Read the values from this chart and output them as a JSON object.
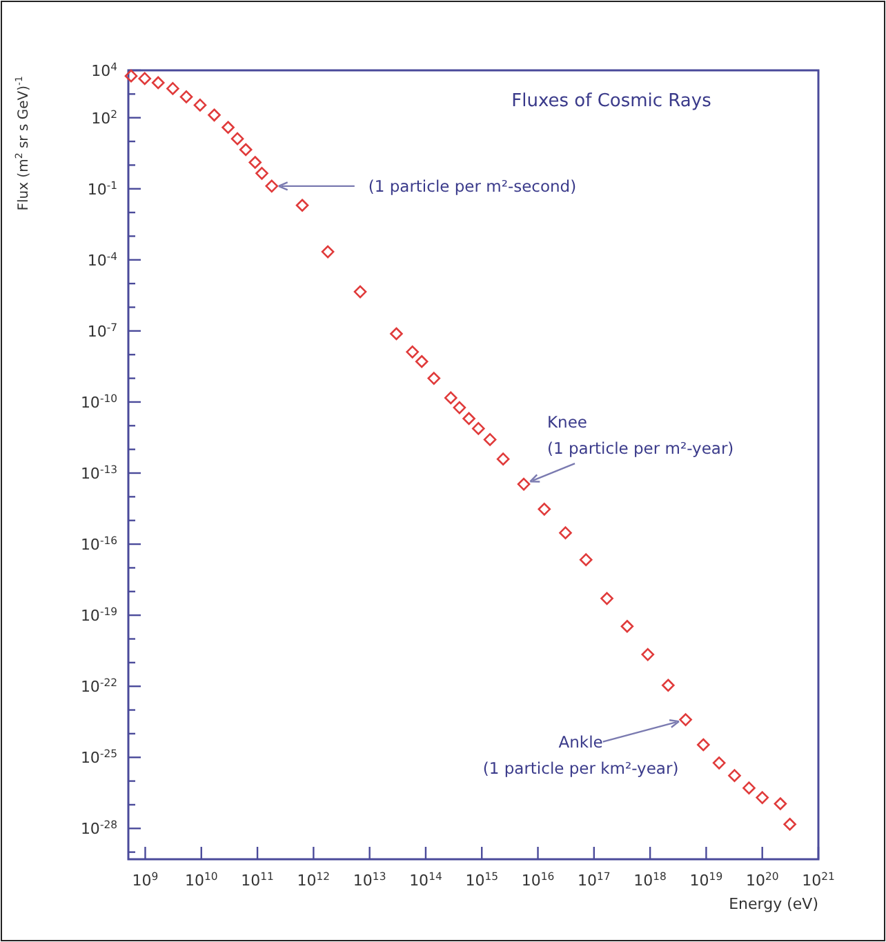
{
  "chart_data": {
    "type": "scatter",
    "title": "Fluxes of Cosmic Rays",
    "xlabel": "Energy (eV)",
    "ylabel": "Flux (m$^{2}$ sr s GeV)$^{-1}$",
    "log": "xy",
    "grid": false,
    "marker": "diamond",
    "xlim": [
      500000000.0,
      1e+21
    ],
    "ylim": [
      5e-30,
      10000.0
    ],
    "xticks": [
      {
        "value": 1000000000.0,
        "label": "10$^{9}$"
      },
      {
        "value": 10000000000.0,
        "label": "10$^{10}$"
      },
      {
        "value": 100000000000.0,
        "label": "10$^{11}$"
      },
      {
        "value": 1000000000000.0,
        "label": "10$^{12}$"
      },
      {
        "value": 10000000000000.0,
        "label": "10$^{13}$"
      },
      {
        "value": 100000000000000.0,
        "label": "10$^{14}$"
      },
      {
        "value": 1000000000000000.0,
        "label": "10$^{15}$"
      },
      {
        "value": 1e+16,
        "label": "10$^{16}$"
      },
      {
        "value": 1e+17,
        "label": "10$^{17}$"
      },
      {
        "value": 1e+18,
        "label": "10$^{18}$"
      },
      {
        "value": 1e+19,
        "label": "10$^{19}$"
      },
      {
        "value": 1e+20,
        "label": "10$^{20}$"
      },
      {
        "value": 1e+21,
        "label": "10$^{21}$"
      }
    ],
    "yticks": [
      {
        "value": 10000.0,
        "label": "10$^{4}$"
      },
      {
        "value": 1000.0,
        "label": null
      },
      {
        "value": 100.0,
        "label": "10$^{2}$"
      },
      {
        "value": 10.0,
        "label": null
      },
      {
        "value": 1,
        "label": null
      },
      {
        "value": 0.1,
        "label": "10$^{-1}$"
      },
      {
        "value": 0.01,
        "label": null
      },
      {
        "value": 0.001,
        "label": null
      },
      {
        "value": 0.0001,
        "label": "10$^{-4}$"
      },
      {
        "value": 1e-05,
        "label": null
      },
      {
        "value": 1e-06,
        "label": null
      },
      {
        "value": 1e-07,
        "label": "10$^{-7}$"
      },
      {
        "value": 1e-08,
        "label": null
      },
      {
        "value": 1e-09,
        "label": null
      },
      {
        "value": 1e-10,
        "label": "10$^{-10}$"
      },
      {
        "value": 1e-11,
        "label": null
      },
      {
        "value": 1e-12,
        "label": null
      },
      {
        "value": 1e-13,
        "label": "10$^{-13}$"
      },
      {
        "value": 1e-14,
        "label": null
      },
      {
        "value": 1e-15,
        "label": null
      },
      {
        "value": 1e-16,
        "label": "10$^{-16}$"
      },
      {
        "value": 1e-17,
        "label": null
      },
      {
        "value": 1e-18,
        "label": null
      },
      {
        "value": 1e-19,
        "label": "10$^{-19}$"
      },
      {
        "value": 1e-20,
        "label": null
      },
      {
        "value": 1e-21,
        "label": null
      },
      {
        "value": 1e-22,
        "label": "10$^{-22}$"
      },
      {
        "value": 1e-23,
        "label": null
      },
      {
        "value": 1e-24,
        "label": null
      },
      {
        "value": 1e-25,
        "label": "10$^{-25}$"
      },
      {
        "value": 1e-26,
        "label": null
      },
      {
        "value": 1e-27,
        "label": null
      },
      {
        "value": 1e-28,
        "label": "10$^{-28}$"
      },
      {
        "value": 1e-29,
        "label": null
      }
    ],
    "series": [
      {
        "color": "#e03a3a",
        "x": [
          560000000.0,
          980000000.0,
          1700000000.0,
          3100000000.0,
          5400000000.0,
          9500000000.0,
          17000000000.0,
          30000000000.0,
          44000000000.0,
          62000000000.0,
          91000000000.0,
          120000000000.0,
          180000000000.0,
          630000000000.0,
          1800000000000.0,
          6800000000000.0,
          30000000000000.0,
          58000000000000.0,
          85000000000000.0,
          140000000000000.0,
          280000000000000.0,
          400000000000000.0,
          590000000000000.0,
          870000000000000.0,
          1400000000000000.0,
          2400000000000000.0,
          5600000000000000.0,
          1.3e+16,
          3.1e+16,
          7.2e+16,
          1.7e+17,
          3.9e+17,
          9.1e+17,
          2.1e+18,
          4.3e+18,
          8.9e+18,
          1.7e+19,
          3.2e+19,
          5.8e+19,
          1e+20,
          2.1e+20,
          3.1e+20
        ],
        "values": [
          5800.0,
          4500.0,
          3000.0,
          1700.0,
          760,
          340,
          130,
          39,
          13,
          4.5,
          1.3,
          0.45,
          0.13,
          0.02,
          0.00022,
          4.5e-06,
          7.6e-08,
          1.3e-08,
          5.1e-09,
          1e-09,
          1.5e-10,
          5.8e-11,
          2e-11,
          7.6e-12,
          2.6e-12,
          3.9e-13,
          3.4e-14,
          3e-15,
          3e-16,
          2.2e-17,
          5.1e-19,
          3.4e-20,
          2.2e-21,
          1.1e-22,
          3.9e-24,
          3.4e-25,
          5.8e-26,
          1.7e-26,
          5.1e-27,
          2e-27,
          1.1e-27,
          1.5e-28
        ]
      }
    ],
    "annotations": [
      {
        "text": "(1 particle per m²-second)",
        "x": 180000000000.0,
        "y": 0.13
      },
      {
        "text": "Knee\n(1 particle per m²-year)",
        "x": 5600000000000000.0,
        "y": 3.4e-14
      },
      {
        "text": "Ankle\n(1 particle per km²-year)",
        "x": 4.3e+18,
        "y": 3.9e-24
      }
    ]
  }
}
